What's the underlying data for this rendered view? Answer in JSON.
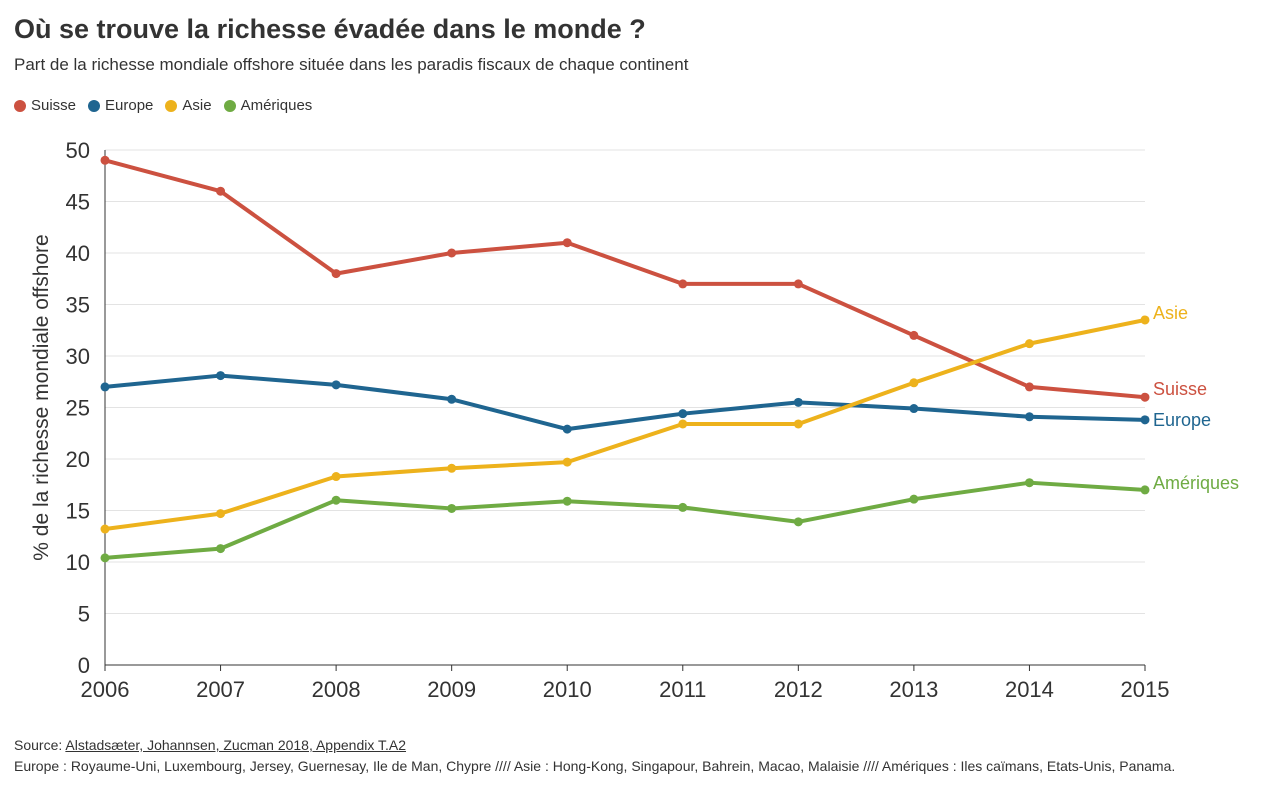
{
  "header": {
    "title": "Où se trouve la richesse évadée dans le monde ?",
    "subtitle": "Part de la richesse mondiale offshore située dans les paradis fiscaux de chaque continent"
  },
  "footer": {
    "source_label": "Source: ",
    "source_link": "Alstadsæter, Johannsen, Zucman 2018, Appendix T.A2",
    "note": "Europe : Royaume-Uni, Luxembourg, Jersey, Guernesay, Ile de Man, Chypre //// Asie : Hong-Kong, Singapour, Bahrein, Macao, Malaisie //// Amériques : Iles caïmans, Etats-Unis, Panama."
  },
  "chart_data": {
    "type": "line",
    "title": "Où se trouve la richesse évadée dans le monde ?",
    "subtitle": "Part de la richesse mondiale offshore située dans les paradis fiscaux de chaque continent",
    "xlabel": "",
    "ylabel": "% de la richesse mondiale offshore",
    "x": [
      "2006",
      "2007",
      "2008",
      "2009",
      "2010",
      "2011",
      "2012",
      "2013",
      "2014",
      "2015"
    ],
    "ylim": [
      0,
      50
    ],
    "yticks": [
      0,
      5,
      10,
      15,
      20,
      25,
      30,
      35,
      40,
      45,
      50
    ],
    "grid": true,
    "legend_position": "top-left",
    "series": [
      {
        "name": "Suisse",
        "color": "#cc5140",
        "values": [
          49.0,
          46.0,
          38.0,
          40.0,
          41.0,
          37.0,
          37.0,
          32.0,
          27.0,
          26.0
        ]
      },
      {
        "name": "Europe",
        "color": "#1f6590",
        "values": [
          27.0,
          28.1,
          27.2,
          25.8,
          22.9,
          24.4,
          25.5,
          24.9,
          24.1,
          23.8
        ]
      },
      {
        "name": "Asie",
        "color": "#edb21c",
        "values": [
          13.2,
          14.7,
          18.3,
          19.1,
          19.7,
          23.4,
          23.4,
          27.4,
          31.2,
          33.5
        ]
      },
      {
        "name": "Amériques",
        "color": "#6fab43",
        "values": [
          10.4,
          11.3,
          16.0,
          15.2,
          15.9,
          15.3,
          13.9,
          16.1,
          17.7,
          17.0
        ]
      }
    ]
  }
}
